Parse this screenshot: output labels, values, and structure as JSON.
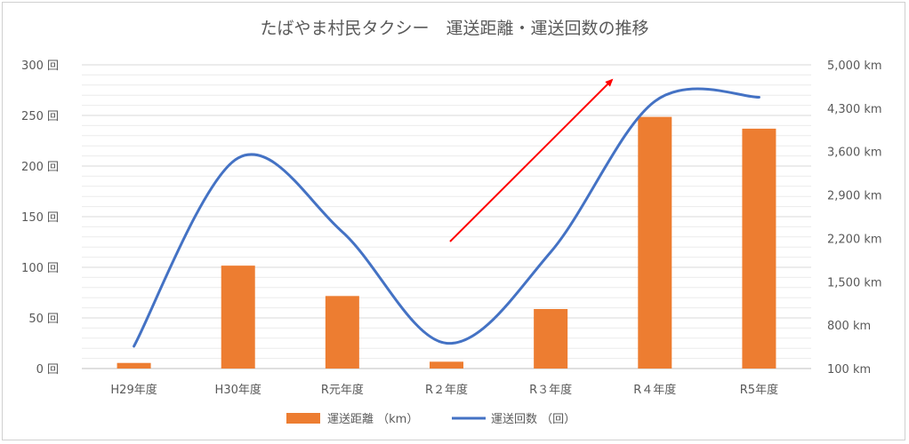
{
  "chart_data": {
    "type": "bar",
    "title": "たばやま村民タクシー　運送距離・運送回数の推移",
    "categories": [
      "H29年度",
      "H30年度",
      "R元年度",
      "R２年度",
      "R３年度",
      "R４年度",
      "R5年度"
    ],
    "y_left": {
      "ticks": [
        "0 回",
        "50 回",
        "100 回",
        "150 回",
        "200 回",
        "250 回",
        "300 回"
      ],
      "range": [
        0,
        300
      ]
    },
    "y_right": {
      "ticks": [
        "100 km",
        "800 km",
        "1,500 km",
        "2,200 km",
        "2,900 km",
        "3,600 km",
        "4,300 km",
        "5,000 km"
      ],
      "range": [
        100,
        5000
      ]
    },
    "series": [
      {
        "name": "運送距離 （km）",
        "kind": "bar",
        "axis": "right",
        "color": "#ED7D31",
        "values": [
          190,
          1760,
          1270,
          210,
          1060,
          4160,
          3970
        ]
      },
      {
        "name": "運送回数 （回）",
        "kind": "line",
        "axis": "left",
        "color": "#4472C4",
        "values": [
          22,
          208,
          135,
          25,
          115,
          264,
          268
        ]
      }
    ],
    "grid": true,
    "legend_position": "bottom"
  }
}
